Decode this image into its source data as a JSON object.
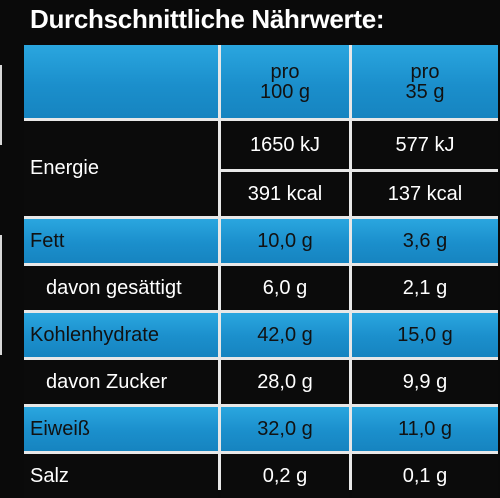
{
  "title": "Durchschnittliche Nährwerte:",
  "columns": [
    {
      "line1": "pro",
      "line2": "100 g"
    },
    {
      "line1": "pro",
      "line2": "35 g"
    }
  ],
  "energy": {
    "label": "Energie",
    "kj": [
      "1650 kJ",
      "577 kJ"
    ],
    "kcal": [
      "391 kcal",
      "137 kcal"
    ]
  },
  "rows": [
    {
      "label": "Fett",
      "values": [
        "10,0 g",
        "3,6 g"
      ],
      "style": "blue"
    },
    {
      "label": "davon gesättigt",
      "values": [
        "6,0 g",
        "2,1 g"
      ],
      "style": "black"
    },
    {
      "label": "Kohlenhydrate",
      "values": [
        "42,0 g",
        "15,0 g"
      ],
      "style": "blue"
    },
    {
      "label": "davon Zucker",
      "values": [
        "28,0 g",
        "9,9 g"
      ],
      "style": "black"
    },
    {
      "label": "Eiweiß",
      "values": [
        "32,0 g",
        "11,0 g"
      ],
      "style": "blue"
    },
    {
      "label": "Salz",
      "values": [
        "0,2 g",
        "0,1 g"
      ],
      "style": "black"
    }
  ],
  "colors": {
    "header_blue": "#1b8fcc",
    "row_black": "#0b0b0b",
    "grid_line": "#e8e8e8"
  }
}
